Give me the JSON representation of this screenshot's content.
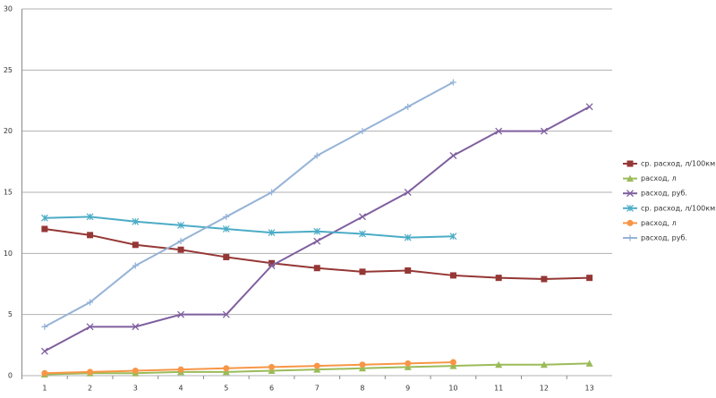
{
  "chart_data": {
    "type": "line",
    "categories": [
      "1",
      "2",
      "3",
      "4",
      "5",
      "6",
      "7",
      "8",
      "9",
      "10",
      "11",
      "12",
      "13"
    ],
    "ylim": [
      0,
      30
    ],
    "yticks": [
      0,
      5,
      10,
      15,
      20,
      25,
      30
    ],
    "grid": true,
    "legend": "right",
    "series": [
      {
        "name": "ср. расход, л/100км",
        "color": "#953735",
        "marker": "square",
        "values": [
          12,
          11.5,
          10.7,
          10.3,
          9.7,
          9.2,
          8.8,
          8.5,
          8.6,
          8.2,
          8.0,
          7.9,
          8.0
        ]
      },
      {
        "name": "расход, л",
        "color": "#9bbb59",
        "marker": "triangle",
        "values": [
          0.1,
          0.2,
          0.2,
          0.3,
          0.3,
          0.4,
          0.5,
          0.6,
          0.7,
          0.8,
          0.9,
          0.9,
          1.0
        ]
      },
      {
        "name": "расход, руб.",
        "color": "#7f5f9f",
        "marker": "x",
        "values": [
          2,
          4,
          4,
          5,
          5,
          9,
          11,
          13,
          15,
          18,
          20,
          20,
          22
        ]
      },
      {
        "name": "ср. расход, л/100км",
        "color": "#4bacc6",
        "marker": "star",
        "values": [
          12.9,
          13.0,
          12.6,
          12.3,
          12.0,
          11.7,
          11.8,
          11.6,
          11.3,
          11.4,
          null,
          null,
          null
        ]
      },
      {
        "name": "расход, л",
        "color": "#f79646",
        "marker": "circle",
        "values": [
          0.2,
          0.3,
          0.4,
          0.5,
          0.6,
          0.7,
          0.8,
          0.9,
          1.0,
          1.1,
          null,
          null,
          null
        ]
      },
      {
        "name": "расход, руб.",
        "color": "#95b3d7",
        "marker": "plus",
        "values": [
          4,
          6,
          9,
          11,
          13,
          15,
          18,
          20,
          22,
          24,
          null,
          null,
          null
        ]
      }
    ]
  }
}
